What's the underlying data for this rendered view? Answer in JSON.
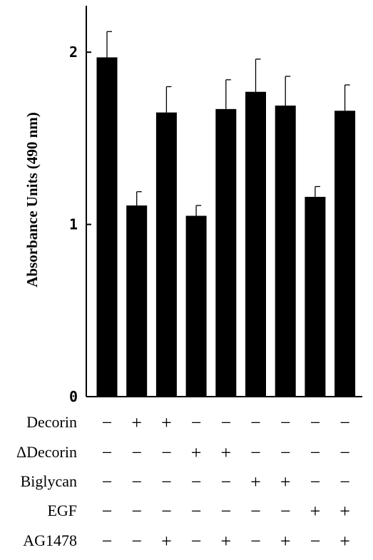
{
  "chart_data": {
    "type": "bar",
    "ylabel": "Absorbance Units  (490 nm)",
    "xlabel": "",
    "ylim": [
      0,
      2.27
    ],
    "yticks": [
      0,
      1,
      2
    ],
    "ytick_labels": [
      "0",
      "1",
      "2"
    ],
    "grid": false,
    "bar_color": "#000000",
    "values": [
      1.97,
      1.11,
      1.65,
      1.05,
      1.67,
      1.77,
      1.69,
      1.16,
      1.66
    ],
    "errors": [
      0.15,
      0.08,
      0.15,
      0.06,
      0.17,
      0.19,
      0.17,
      0.06,
      0.15
    ],
    "conditions": [
      {
        "label": "Decorin",
        "signs": [
          "−",
          "+",
          "+",
          "−",
          "−",
          "−",
          "−",
          "−",
          "−"
        ]
      },
      {
        "label": "ΔDecorin",
        "signs": [
          "−",
          "−",
          "−",
          "+",
          "+",
          "−",
          "−",
          "−",
          "−"
        ]
      },
      {
        "label": "Biglycan",
        "signs": [
          "−",
          "−",
          "−",
          "−",
          "−",
          "+",
          "+",
          "−",
          "−"
        ]
      },
      {
        "label": "EGF",
        "signs": [
          "−",
          "−",
          "−",
          "−",
          "−",
          "−",
          "−",
          "+",
          "+"
        ]
      },
      {
        "label": "AG1478",
        "signs": [
          "−",
          "−",
          "+",
          "−",
          "+",
          "−",
          "+",
          "−",
          "+"
        ]
      }
    ]
  }
}
